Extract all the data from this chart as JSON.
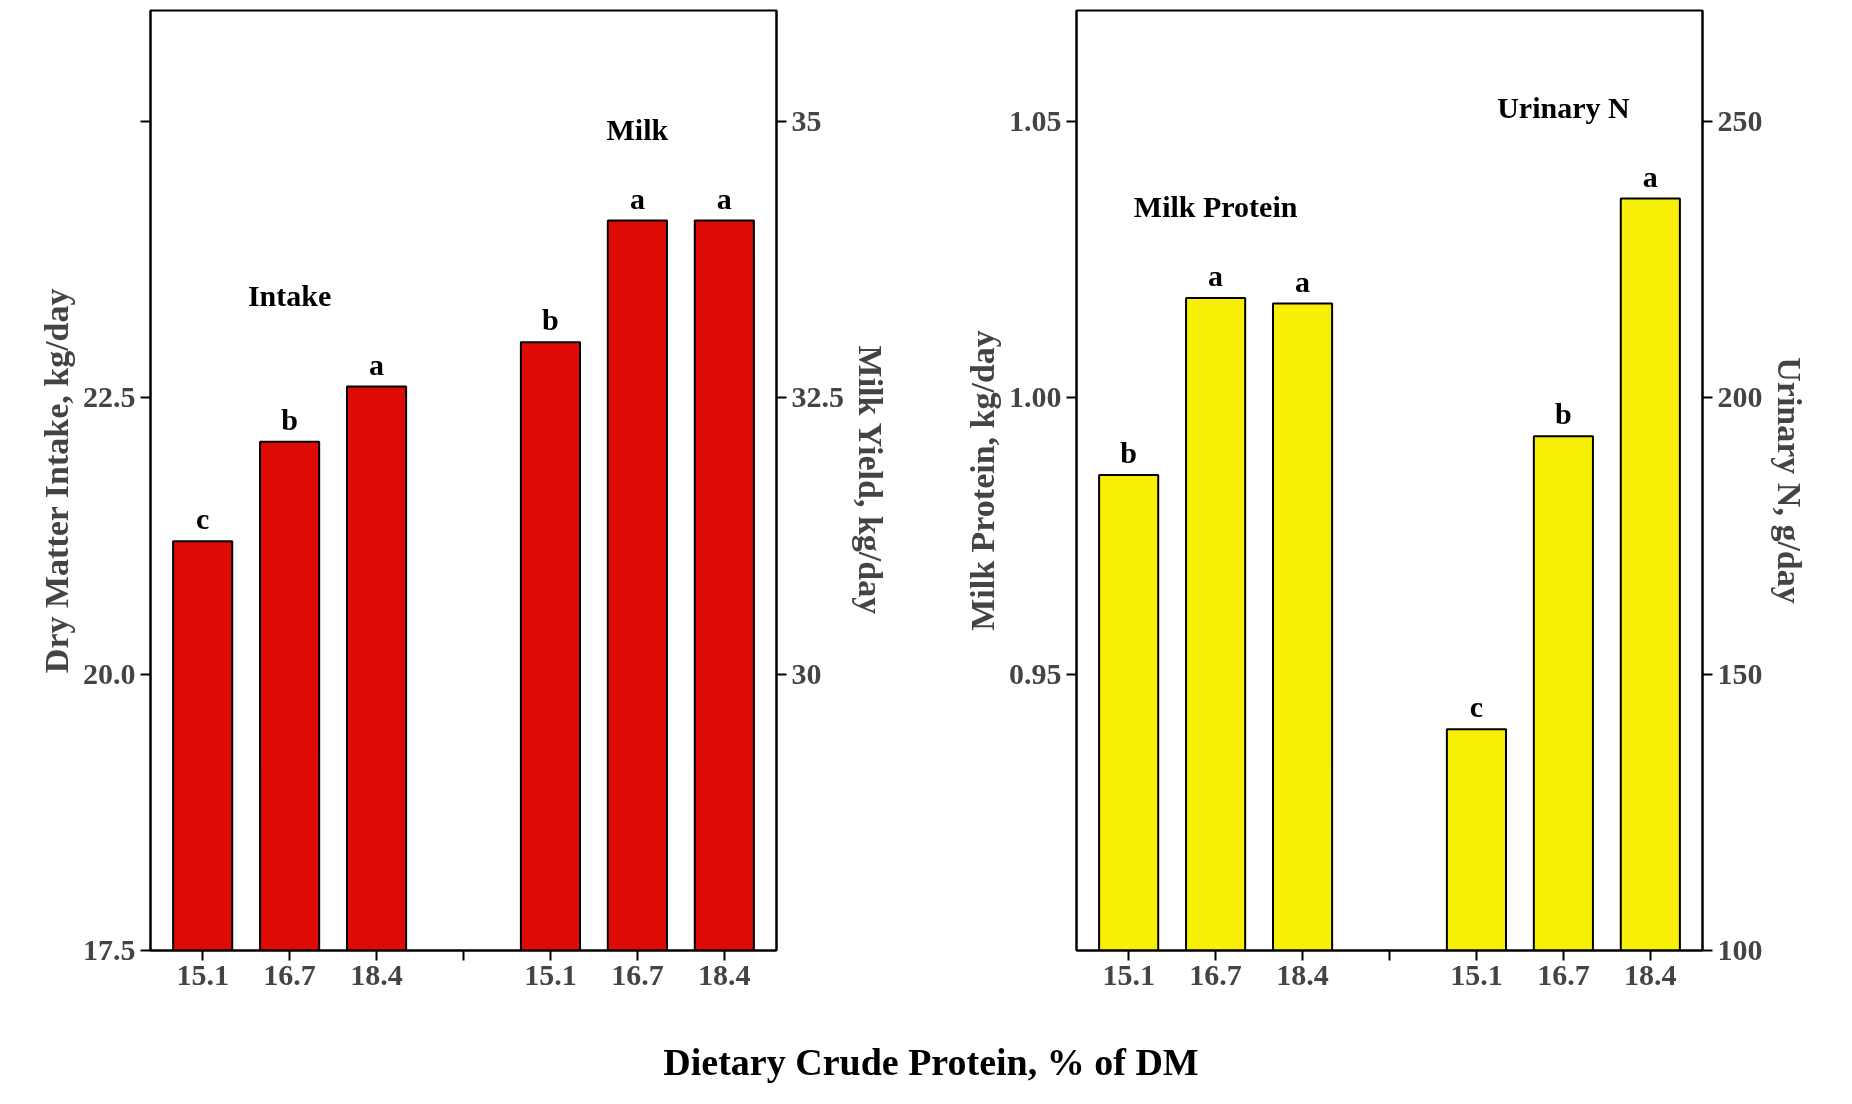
{
  "chart_data": [
    {
      "type": "bar",
      "categories": [
        "15.1",
        "16.7",
        "18.4",
        null,
        "15.1",
        "16.7",
        "18.4"
      ],
      "xlabel": "Dietary Crude Protein, % of DM",
      "ylabel": "Dry Matter Intake, kg/day",
      "y2label": "Milk Yield, kg/day",
      "ylim": [
        17.5,
        26
      ],
      "yticks": [
        17.5,
        {
          "value": 20,
          "label": "20.0"
        },
        22.5,
        {
          "value": 25,
          "label": null
        }
      ],
      "y2lim": [
        27.5,
        36
      ],
      "y2ticks": [
        30,
        32.5,
        35
      ],
      "series": [
        {
          "name": "Intake",
          "color": "#dd0a05",
          "axis": "y",
          "values": [
            21.2,
            22.1,
            22.6,
            null,
            null,
            null,
            null
          ],
          "value_labels": [
            "c",
            "b",
            "a",
            null,
            null,
            null,
            null
          ]
        },
        {
          "name": "Milk",
          "color": "#dd0a05",
          "axis": "y2",
          "values": [
            null,
            null,
            null,
            null,
            33.0,
            34.1,
            34.1
          ],
          "value_labels": [
            null,
            null,
            null,
            null,
            "b",
            "a",
            "a"
          ]
        }
      ]
    },
    {
      "type": "bar",
      "categories": [
        "15.1",
        "16.7",
        "18.4",
        null,
        "15.1",
        "16.7",
        "18.4"
      ],
      "ylabel": "Milk Protein, kg/day",
      "y2label": "Urinary N, g/day",
      "ylim": [
        0.9,
        1.07
      ],
      "yticks": [
        0.95,
        {
          "value": 1,
          "label": "1.00"
        },
        1.05
      ],
      "y2lim": [
        100,
        270
      ],
      "y2ticks": [
        100,
        150,
        200,
        250
      ],
      "series": [
        {
          "name": "Milk Protein",
          "color": "#f7ef05",
          "axis": "y",
          "values": [
            0.986,
            1.018,
            1.017,
            null,
            null,
            null,
            null
          ],
          "value_labels": [
            "b",
            "a",
            "a",
            null,
            null,
            null,
            null
          ]
        },
        {
          "name": "Urinary N",
          "color": "#f7ef05",
          "axis": "y2",
          "values": [
            null,
            null,
            null,
            null,
            140,
            193,
            236
          ],
          "value_labels": [
            null,
            null,
            null,
            null,
            "c",
            "b",
            "a"
          ]
        }
      ]
    }
  ]
}
